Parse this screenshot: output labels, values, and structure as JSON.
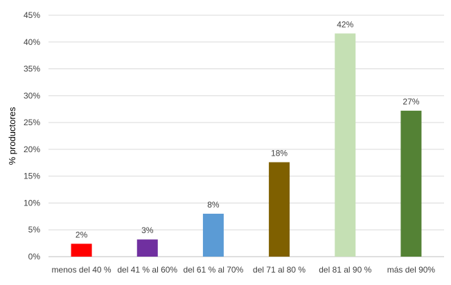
{
  "chart_data": {
    "type": "bar",
    "categories": [
      "menos del 40 %",
      "del 41 % al 60%",
      "del 61 % al 70%",
      "del 71 al 80 %",
      "del 81 al 90 %",
      "más del 90%"
    ],
    "values": [
      2.4,
      3.2,
      8.0,
      17.6,
      41.6,
      27.2
    ],
    "data_labels": [
      "2%",
      "3%",
      "8%",
      "18%",
      "42%",
      "27%"
    ],
    "bar_colors": [
      "#ff0000",
      "#7030a0",
      "#5b9bd5",
      "#7f6000",
      "#c5e0b4",
      "#548235"
    ],
    "title": "",
    "xlabel": "",
    "ylabel": "% productores",
    "ylim": [
      0,
      45
    ],
    "yticks": [
      0,
      5,
      10,
      15,
      20,
      25,
      30,
      35,
      40,
      45
    ],
    "ytick_labels": [
      "0%",
      "5%",
      "10%",
      "15%",
      "20%",
      "25%",
      "30%",
      "35%",
      "40%",
      "45%"
    ],
    "grid": true,
    "legend": "none"
  }
}
